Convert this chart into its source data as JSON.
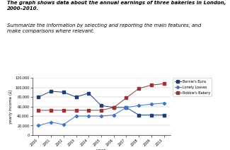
{
  "title_line1": "The graph shows data about the annual earnings of three bakeries in London,",
  "title_line2": "2000–2010.",
  "subtitle": "Summarize the information by selecting and reporting the main features, and\nmake comparisons where relevant.",
  "years": [
    2000,
    2001,
    2002,
    2003,
    2004,
    2005,
    2006,
    2007,
    2008,
    2009,
    2010
  ],
  "bernie": [
    80000,
    92000,
    90000,
    80000,
    88000,
    62000,
    58000,
    58000,
    42000,
    42000,
    42000
  ],
  "lonely": [
    20000,
    27000,
    22000,
    40000,
    40000,
    40000,
    42000,
    58000,
    62000,
    65000,
    67000
  ],
  "robbie": [
    52000,
    52000,
    52000,
    52000,
    52000,
    52000,
    58000,
    78000,
    98000,
    105000,
    108000
  ],
  "bernie_color": "#1F3D7A",
  "lonely_color": "#4472C4",
  "robbie_color": "#943634",
  "ylabel": "yearly income (£)",
  "xlabel": "year",
  "ylim": [
    0,
    120000
  ],
  "yticks": [
    0,
    20000,
    40000,
    60000,
    80000,
    100000,
    120000
  ],
  "ytick_labels": [
    "0",
    "20,000",
    "40,000",
    "60,000",
    "80,000",
    "100,000",
    "120,000"
  ],
  "legend_labels": [
    "Bernie's Buns",
    "Lonely Loaves",
    "Robbie's Bakery"
  ]
}
